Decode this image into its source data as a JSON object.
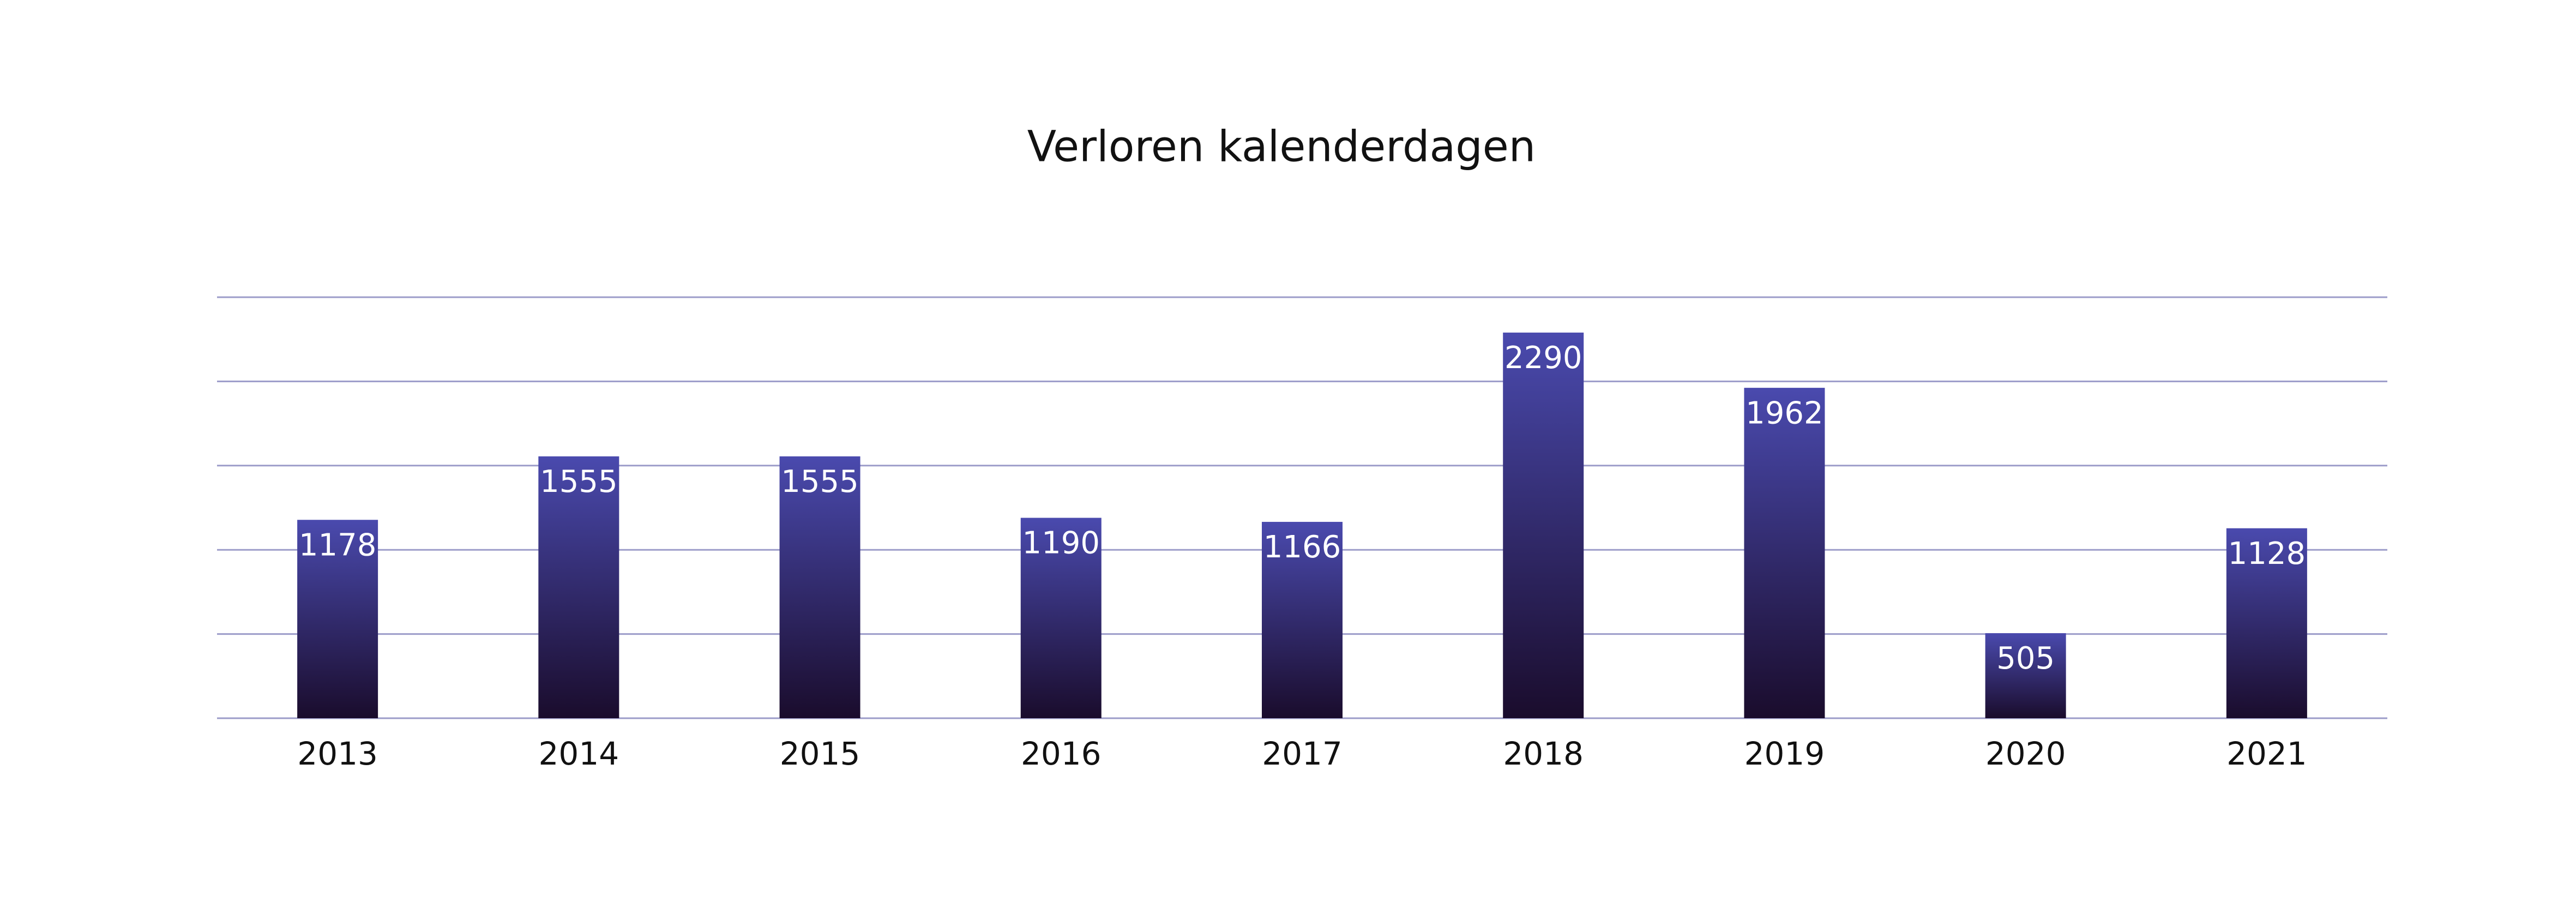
{
  "chart_data": {
    "type": "bar",
    "title": "Verloren kalenderdagen",
    "categories": [
      "2013",
      "2014",
      "2015",
      "2016",
      "2017",
      "2018",
      "2019",
      "2020",
      "2021"
    ],
    "values": [
      1178,
      1555,
      1555,
      1190,
      1166,
      2290,
      1962,
      505,
      1128
    ],
    "gradient": [
      "#4a4aae",
      "#1a0c2c"
    ],
    "ylim": [
      0,
      2500
    ],
    "yticks": [
      0,
      500,
      1000,
      1500,
      2000,
      2500
    ],
    "grid": true,
    "grid_color": "#9c9cc9"
  }
}
